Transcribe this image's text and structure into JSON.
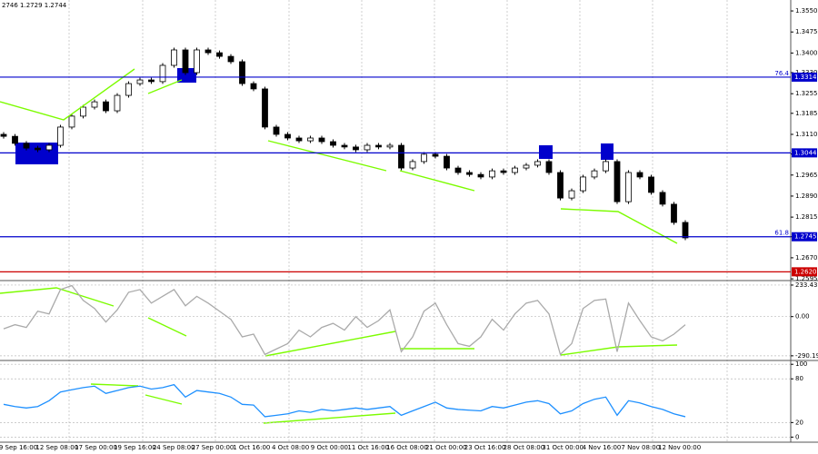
{
  "chart_data": [
    {
      "type": "candlestick",
      "header": "2746 1.2729 1.2744",
      "ylim": [
        1.2592,
        1.3589
      ],
      "yticks": [
        {
          "value": 1.355,
          "label": "1.3550"
        },
        1.3475,
        {
          "value": 1.34,
          "label": "1.3400"
        },
        {
          "value": 1.333,
          "label": "1.3330"
        },
        1.3255,
        1.3185,
        {
          "value": 1.311,
          "label": "1.3110"
        },
        {
          "value": 1.304,
          "label": "1.3040"
        },
        1.2965,
        {
          "value": 1.289,
          "label": "1.2890"
        },
        1.2815,
        1.2745,
        {
          "value": 1.267,
          "label": "1.2670"
        },
        1.2595
      ],
      "levels": [
        {
          "value": 1.3314,
          "color": "#0000cc",
          "fib": "76.4"
        },
        {
          "value": 1.3044,
          "color": "#0000cc"
        },
        {
          "value": 1.2745,
          "color": "#0000cc",
          "fib": "61.8"
        },
        {
          "value": {
            "value": 1.262,
            "label": "1.2620"
          },
          "color": "#cc0000"
        }
      ],
      "x_labels": [
        "9 Sep 16:00",
        "12 Sep 08:00",
        "17 Sep 00:00",
        "19 Sep 16:00",
        "24 Sep 08:00",
        "27 Sep 00:00",
        "1 Oct 16:00",
        "4 Oct 08:00",
        "9 Oct 00:00",
        "11 Oct 16:00",
        "16 Oct 08:00",
        "21 Oct 00:00",
        "23 Oct 16:00",
        "28 Oct 08:00",
        "31 Oct 00:00",
        "4 Nov 16:00",
        "7 Nov 08:00",
        "12 Nov 00:00"
      ],
      "candles": [
        [
          1.311,
          1.3118,
          1.3095,
          1.3103
        ],
        [
          1.3103,
          1.3111,
          1.307,
          1.3078
        ],
        [
          1.3078,
          1.3086,
          1.3053,
          1.3061
        ],
        [
          1.3061,
          1.3069,
          1.3047,
          1.3055
        ],
        [
          1.3055,
          1.3079,
          1.3047,
          1.3071
        ],
        [
          1.3071,
          1.3144,
          1.3063,
          1.3136
        ],
        [
          1.3136,
          1.3183,
          1.3128,
          1.3175
        ],
        [
          1.3175,
          1.3215,
          1.3167,
          1.3207
        ],
        [
          1.3207,
          1.3234,
          1.3199,
          1.3226
        ],
        [
          1.3226,
          1.3234,
          1.3186,
          1.3194
        ],
        [
          1.3194,
          1.3257,
          1.3186,
          1.3249
        ],
        [
          1.3249,
          1.3299,
          1.3241,
          1.3291
        ],
        [
          1.3291,
          1.3312,
          1.3283,
          1.3304
        ],
        [
          1.3304,
          1.3312,
          1.329,
          1.3298
        ],
        [
          1.3298,
          1.3364,
          1.329,
          1.3356
        ],
        [
          1.3356,
          1.3419,
          1.3348,
          1.3411
        ],
        [
          1.3411,
          1.3419,
          1.3322,
          1.333
        ],
        [
          1.333,
          1.3419,
          1.3322,
          1.3411
        ],
        [
          1.3411,
          1.3419,
          1.3393,
          1.3401
        ],
        [
          1.3401,
          1.3409,
          1.338,
          1.3388
        ],
        [
          1.3388,
          1.3396,
          1.3361,
          1.3369
        ],
        [
          1.3369,
          1.3377,
          1.3283,
          1.3291
        ],
        [
          1.3291,
          1.3299,
          1.3264,
          1.3272
        ],
        [
          1.3272,
          1.328,
          1.3128,
          1.3136
        ],
        [
          1.3136,
          1.3144,
          1.3102,
          1.311
        ],
        [
          1.311,
          1.3118,
          1.3089,
          1.3097
        ],
        [
          1.3097,
          1.3105,
          1.3079,
          1.3087
        ],
        [
          1.3087,
          1.3105,
          1.3079,
          1.3097
        ],
        [
          1.3097,
          1.3105,
          1.3076,
          1.3084
        ],
        [
          1.3084,
          1.3092,
          1.3063,
          1.3071
        ],
        [
          1.3071,
          1.3079,
          1.3057,
          1.3065
        ],
        [
          1.3065,
          1.3073,
          1.3047,
          1.3055
        ],
        [
          1.3055,
          1.3079,
          1.3047,
          1.3071
        ],
        [
          1.3071,
          1.3079,
          1.3057,
          1.3065
        ],
        [
          1.3065,
          1.3079,
          1.3057,
          1.3071
        ],
        [
          1.3071,
          1.3079,
          1.2982,
          1.299
        ],
        [
          1.299,
          1.3021,
          1.2982,
          1.3013
        ],
        [
          1.3013,
          1.3047,
          1.3005,
          1.3039
        ],
        [
          1.3039,
          1.3047,
          1.3024,
          1.3032
        ],
        [
          1.3032,
          1.304,
          1.2982,
          1.299
        ],
        [
          1.299,
          1.2998,
          1.2966,
          1.2974
        ],
        [
          1.2974,
          1.2982,
          1.2959,
          1.2967
        ],
        [
          1.2967,
          1.2975,
          1.295,
          1.2958
        ],
        [
          1.2958,
          1.2988,
          1.295,
          1.298
        ],
        [
          1.298,
          1.2988,
          1.2966,
          1.2974
        ],
        [
          1.2974,
          1.2998,
          1.2966,
          1.299
        ],
        [
          1.299,
          1.3008,
          1.2982,
          1.3
        ],
        [
          1.3,
          1.3021,
          1.2992,
          1.3013
        ],
        [
          1.3013,
          1.3021,
          1.2966,
          1.2974
        ],
        [
          1.2974,
          1.2982,
          1.2875,
          1.2883
        ],
        [
          1.2883,
          1.2917,
          1.2875,
          1.2909
        ],
        [
          1.2909,
          1.2966,
          1.2901,
          1.2958
        ],
        [
          1.2958,
          1.2988,
          1.295,
          1.298
        ],
        [
          1.298,
          1.3021,
          1.2972,
          1.3013
        ],
        [
          1.3013,
          1.3021,
          1.2862,
          1.287
        ],
        [
          1.287,
          1.2982,
          1.2862,
          1.2974
        ],
        [
          1.2974,
          1.2982,
          1.295,
          1.2958
        ],
        [
          1.2958,
          1.2966,
          1.2895,
          1.2903
        ],
        [
          1.2903,
          1.2911,
          1.2853,
          1.2861
        ],
        [
          1.2861,
          1.2869,
          1.2788,
          1.2796
        ],
        [
          1.2796,
          1.2804,
          1.2733,
          1.2741
        ]
      ]
    },
    {
      "type": "line",
      "color": "#aaaaaa",
      "ylim": [
        -318,
        260
      ],
      "yticks": [
        233.4378,
        {
          "value": 0,
          "label": "0.00"
        },
        -290.198
      ],
      "values": [
        -90,
        -60,
        -80,
        40,
        20,
        200,
        230,
        120,
        60,
        -40,
        50,
        180,
        200,
        100,
        150,
        200,
        80,
        150,
        100,
        40,
        -20,
        -150,
        -130,
        -280,
        -240,
        -200,
        -100,
        -150,
        -80,
        -50,
        -100,
        0,
        -80,
        -30,
        50,
        -260,
        -150,
        40,
        100,
        -60,
        -200,
        -220,
        -150,
        -20,
        -100,
        20,
        100,
        120,
        20,
        -280,
        -200,
        60,
        120,
        130,
        -260,
        100,
        -30,
        -150,
        -180,
        -130,
        -60
      ]
    },
    {
      "type": "line",
      "color": "#1e90ff",
      "ylim": [
        -7,
        104
      ],
      "yticks": [
        100,
        80,
        20,
        0
      ],
      "values": [
        45,
        42,
        40,
        42,
        50,
        62,
        65,
        68,
        70,
        60,
        64,
        68,
        70,
        66,
        68,
        72,
        55,
        64,
        62,
        60,
        55,
        45,
        44,
        28,
        30,
        32,
        36,
        34,
        38,
        36,
        38,
        40,
        38,
        40,
        42,
        30,
        36,
        42,
        48,
        40,
        38,
        37,
        36,
        42,
        40,
        44,
        48,
        50,
        46,
        32,
        36,
        46,
        52,
        55,
        30,
        50,
        47,
        42,
        38,
        32,
        28
      ]
    }
  ]
}
